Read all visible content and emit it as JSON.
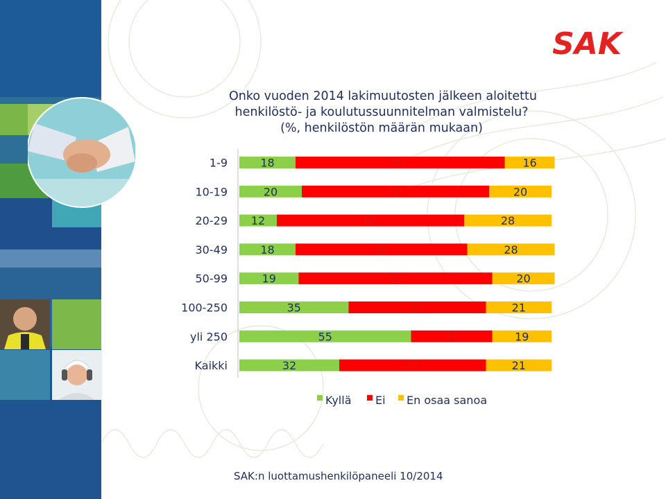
{
  "brand": {
    "logo_text": "SAK"
  },
  "title_lines": [
    "Onko vuoden 2014 lakimuutosten jälkeen aloitettu",
    "henkilöstö- ja koulutussuunnitelman valmistelu?",
    "(%, henkilöstön määrän mukaan)"
  ],
  "footer": "SAK:n luottamushenkilöpaneeli 10/2014",
  "colors": {
    "kylla": "#8cd04a",
    "ei": "#ff0000",
    "eos": "#ffc000",
    "text": "#1f2d5a"
  },
  "chart_data": {
    "type": "bar",
    "orientation": "horizontal",
    "stacked": true,
    "percent": true,
    "categories": [
      "1-9",
      "10-19",
      "20-29",
      "30-49",
      "50-99",
      "100-250",
      "yli 250",
      "Kaikki"
    ],
    "series": [
      {
        "name": "Kyllä",
        "values": [
          18,
          20,
          12,
          18,
          19,
          35,
          55,
          32
        ]
      },
      {
        "name": "Ei",
        "values": [
          67,
          60,
          60,
          55,
          62,
          44,
          26,
          47
        ]
      },
      {
        "name": "En osaa sanoa",
        "values": [
          16,
          20,
          28,
          28,
          20,
          21,
          19,
          21
        ]
      }
    ],
    "legend_position": "bottom"
  }
}
